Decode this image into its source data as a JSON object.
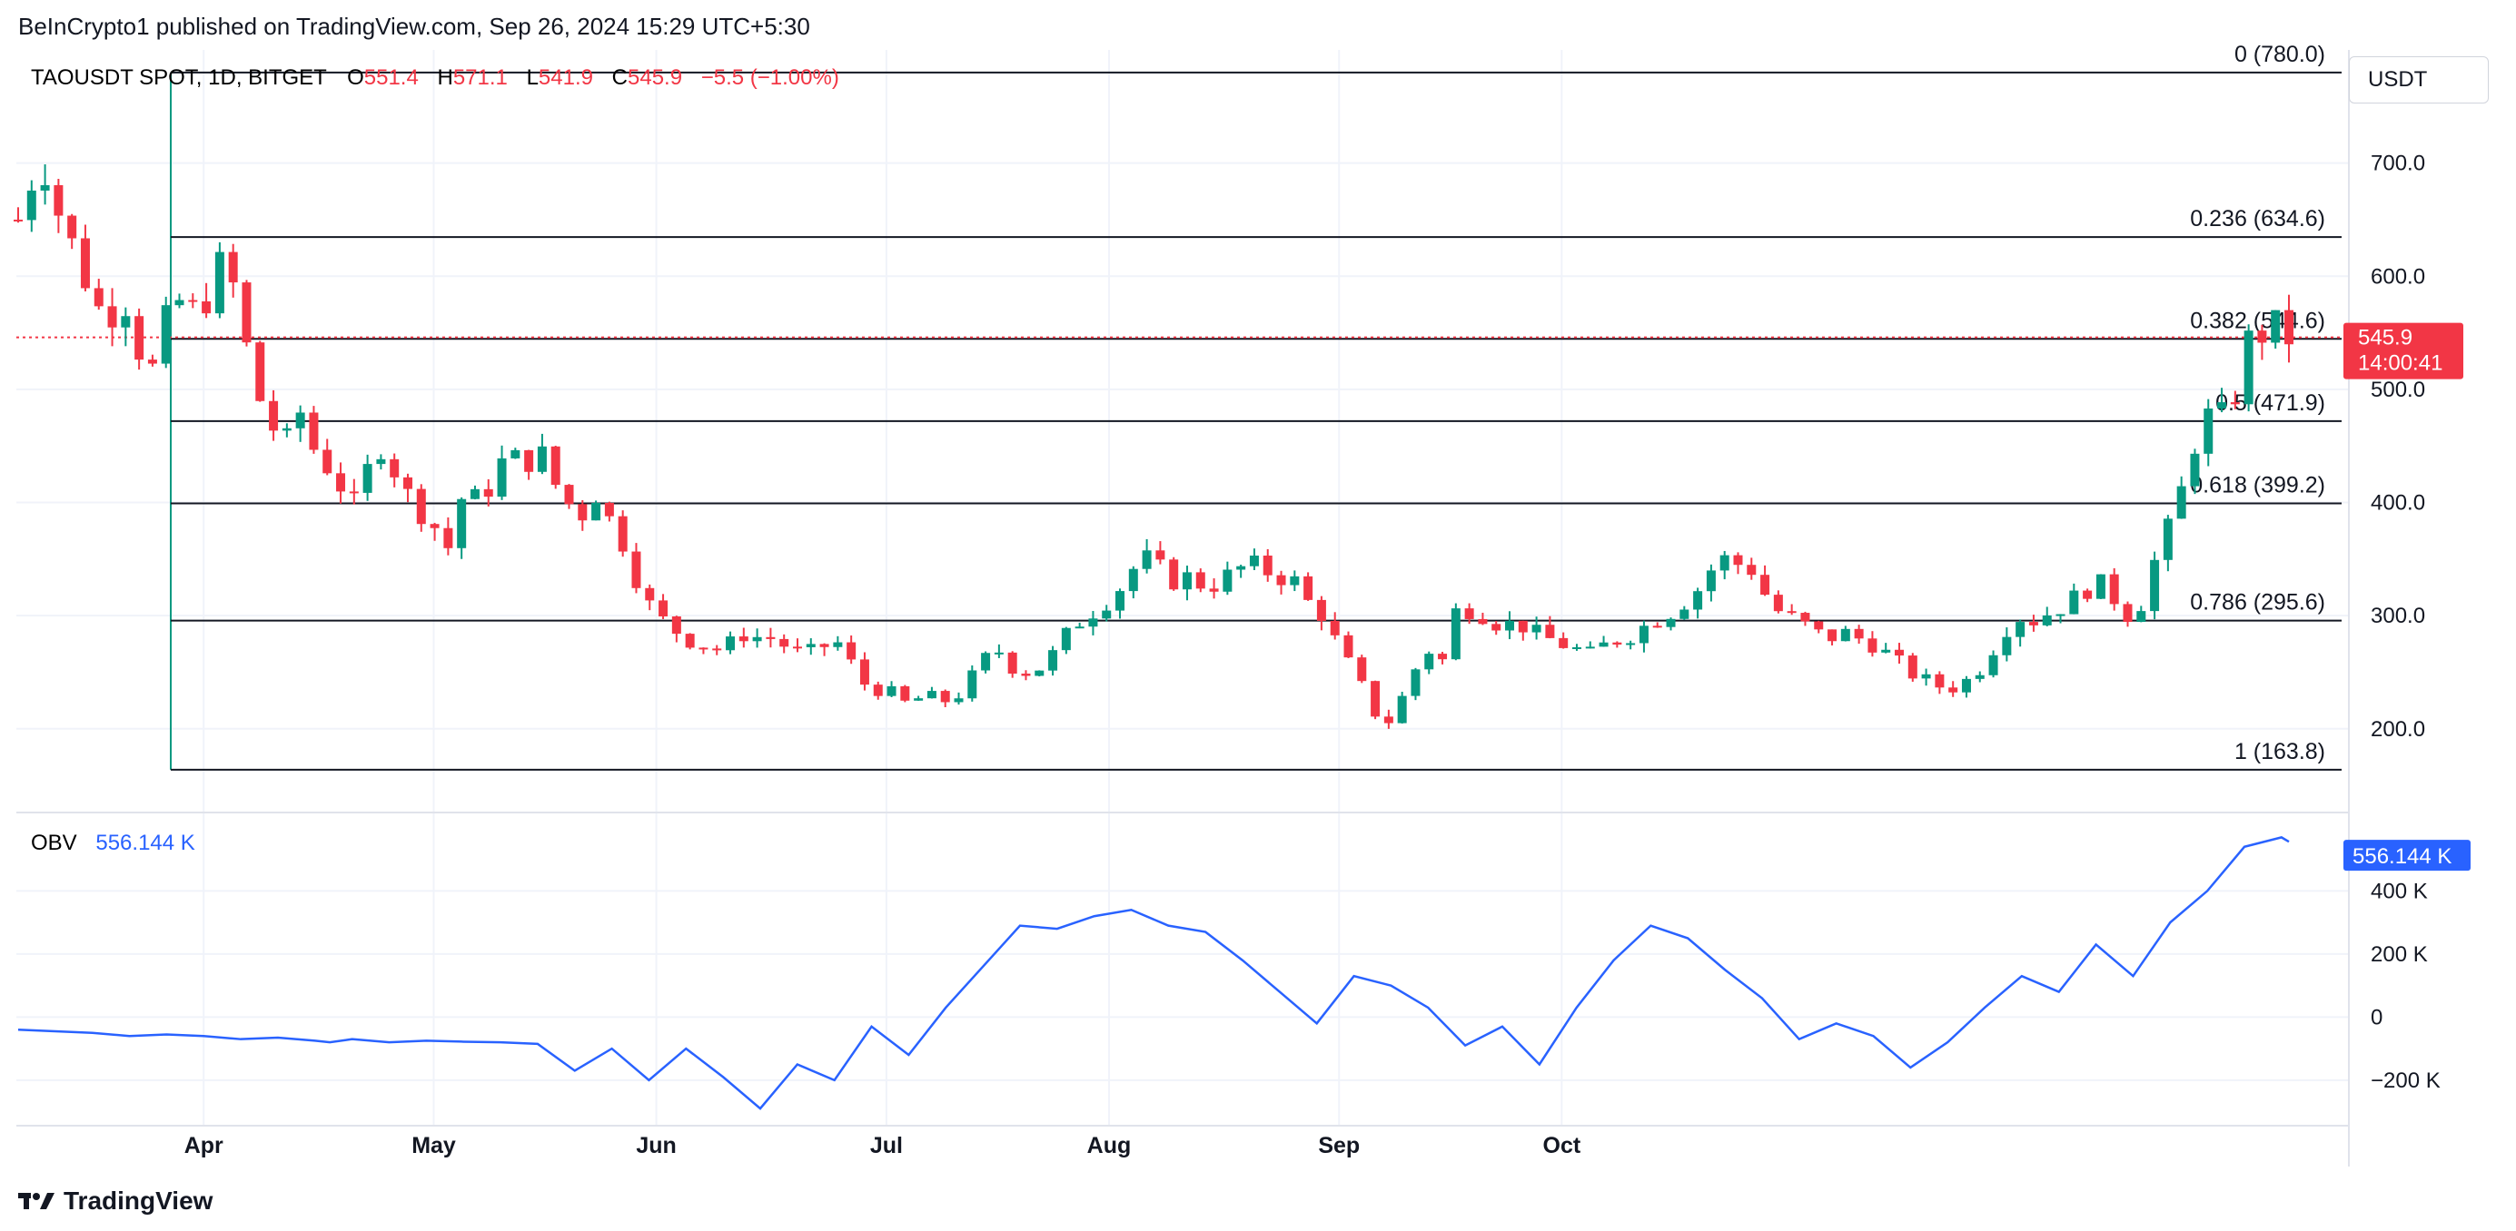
{
  "publisher": "BeInCrypto1 published on TradingView.com, Sep 26, 2024 15:29 UTC+5:30",
  "currency_button": "USDT",
  "brand": "TradingView",
  "colors": {
    "up": "#089981",
    "down": "#f23645",
    "obv": "#2962ff",
    "grid": "#f0f3fa",
    "fib": "#131722"
  },
  "chart_data": [
    {
      "type": "candlestick",
      "header": {
        "symbol": "TAOUSDT SPOT, 1D, BITGET",
        "o_label": "O",
        "o": "551.4",
        "h_label": "H",
        "h": "571.1",
        "l_label": "L",
        "l": "541.9",
        "c_label": "C",
        "c": "545.9",
        "change": "−5.5 (−1.00%)"
      },
      "price_axis": {
        "ticks": [
          "200.0",
          "300.0",
          "400.0",
          "500.0",
          "600.0",
          "700.0"
        ],
        "tick_values": [
          200,
          300,
          400,
          500,
          600,
          700
        ],
        "ylim": [
          130,
          800
        ]
      },
      "last_price": {
        "value": 545.9,
        "label": "545.9",
        "countdown": "14:00:41"
      },
      "time_axis": {
        "labels": [
          "Apr",
          "May",
          "Jun",
          "Jul",
          "Aug",
          "Sep",
          "Oct"
        ]
      },
      "fib_levels": [
        {
          "label": "0 (780.0)",
          "value": 780.0
        },
        {
          "label": "0.236 (634.6)",
          "value": 634.6
        },
        {
          "label": "0.382 (544.6)",
          "value": 544.6
        },
        {
          "label": "0.5 (471.9)",
          "value": 471.9
        },
        {
          "label": "0.618 (399.2)",
          "value": 399.2
        },
        {
          "label": "0.786 (295.6)",
          "value": 295.6
        },
        {
          "label": "1 (163.8)",
          "value": 163.8
        }
      ],
      "close_path": [
        [
          0,
          650
        ],
        [
          2,
          690
        ],
        [
          4,
          700
        ],
        [
          6,
          640
        ],
        [
          8,
          620
        ],
        [
          10,
          580
        ],
        [
          12,
          560
        ],
        [
          14,
          590
        ],
        [
          16,
          540
        ],
        [
          18,
          515
        ],
        [
          20,
          560
        ],
        [
          22,
          580
        ],
        [
          24,
          565
        ],
        [
          26,
          590
        ],
        [
          28,
          620
        ],
        [
          30,
          560
        ],
        [
          32,
          500
        ],
        [
          34,
          470
        ],
        [
          36,
          450
        ],
        [
          38,
          480
        ],
        [
          40,
          445
        ],
        [
          42,
          430
        ],
        [
          44,
          410
        ],
        [
          46,
          390
        ],
        [
          48,
          460
        ],
        [
          50,
          440
        ],
        [
          52,
          410
        ],
        [
          54,
          395
        ],
        [
          56,
          380
        ],
        [
          58,
          360
        ],
        [
          60,
          410
        ],
        [
          62,
          400
        ],
        [
          64,
          420
        ],
        [
          66,
          445
        ],
        [
          68,
          430
        ],
        [
          70,
          450
        ],
        [
          72,
          420
        ],
        [
          74,
          400
        ],
        [
          76,
          390
        ],
        [
          78,
          410
        ],
        [
          80,
          380
        ],
        [
          82,
          360
        ],
        [
          84,
          320
        ],
        [
          86,
          300
        ],
        [
          88,
          290
        ],
        [
          90,
          280
        ],
        [
          92,
          275
        ],
        [
          94,
          270
        ],
        [
          96,
          275
        ],
        [
          98,
          285
        ],
        [
          100,
          280
        ],
        [
          102,
          280
        ],
        [
          104,
          270
        ],
        [
          106,
          265
        ],
        [
          108,
          270
        ],
        [
          110,
          280
        ],
        [
          112,
          260
        ],
        [
          114,
          240
        ],
        [
          116,
          235
        ],
        [
          118,
          230
        ],
        [
          120,
          220
        ],
        [
          122,
          230
        ],
        [
          124,
          225
        ],
        [
          126,
          225
        ],
        [
          128,
          240
        ],
        [
          130,
          260
        ],
        [
          132,
          270
        ],
        [
          134,
          255
        ],
        [
          136,
          250
        ],
        [
          138,
          255
        ],
        [
          140,
          270
        ],
        [
          142,
          290
        ],
        [
          144,
          300
        ],
        [
          146,
          310
        ],
        [
          148,
          320
        ],
        [
          150,
          340
        ],
        [
          152,
          350
        ],
        [
          154,
          340
        ],
        [
          156,
          330
        ],
        [
          158,
          335
        ],
        [
          160,
          325
        ],
        [
          162,
          330
        ],
        [
          164,
          340
        ],
        [
          166,
          345
        ],
        [
          168,
          340
        ],
        [
          170,
          335
        ],
        [
          172,
          330
        ],
        [
          174,
          310
        ],
        [
          176,
          300
        ],
        [
          178,
          270
        ],
        [
          180,
          250
        ],
        [
          182,
          225
        ],
        [
          184,
          200
        ],
        [
          186,
          220
        ],
        [
          188,
          250
        ],
        [
          190,
          270
        ],
        [
          192,
          260
        ],
        [
          194,
          310
        ],
        [
          196,
          305
        ],
        [
          198,
          300
        ],
        [
          200,
          290
        ],
        [
          202,
          295
        ],
        [
          204,
          285
        ],
        [
          206,
          280
        ],
        [
          208,
          275
        ],
        [
          210,
          270
        ],
        [
          212,
          265
        ],
        [
          214,
          275
        ],
        [
          216,
          280
        ],
        [
          218,
          285
        ],
        [
          220,
          295
        ],
        [
          222,
          300
        ],
        [
          224,
          310
        ],
        [
          226,
          320
        ],
        [
          228,
          340
        ],
        [
          230,
          350
        ],
        [
          232,
          345
        ],
        [
          234,
          340
        ],
        [
          236,
          310
        ],
        [
          238,
          300
        ],
        [
          240,
          295
        ],
        [
          242,
          285
        ],
        [
          244,
          280
        ],
        [
          246,
          285
        ],
        [
          248,
          280
        ],
        [
          250,
          275
        ],
        [
          252,
          265
        ],
        [
          254,
          255
        ],
        [
          256,
          245
        ],
        [
          258,
          240
        ],
        [
          260,
          235
        ],
        [
          262,
          240
        ],
        [
          264,
          250
        ],
        [
          266,
          270
        ],
        [
          268,
          290
        ],
        [
          270,
          300
        ],
        [
          272,
          295
        ],
        [
          274,
          305
        ],
        [
          276,
          310
        ],
        [
          278,
          320
        ],
        [
          280,
          330
        ],
        [
          282,
          320
        ],
        [
          284,
          300
        ],
        [
          286,
          310
        ],
        [
          288,
          350
        ],
        [
          290,
          380
        ],
        [
          292,
          420
        ],
        [
          294,
          470
        ],
        [
          296,
          480
        ],
        [
          298,
          470
        ],
        [
          300,
          540
        ],
        [
          302,
          548
        ],
        [
          304,
          556
        ],
        [
          306,
          545.9
        ]
      ],
      "candle_count": 170
    },
    {
      "type": "line",
      "name": "OBV",
      "value_label": "556.144 K",
      "axis": {
        "ticks": [
          "−200 K",
          "0",
          "200 K",
          "400 K"
        ],
        "tick_values": [
          -200000,
          0,
          200000,
          400000
        ],
        "ylim": [
          -330000,
          620000
        ]
      },
      "x": [
        0,
        5,
        10,
        15,
        20,
        25,
        30,
        35,
        40,
        42,
        45,
        50,
        55,
        60,
        65,
        70,
        75,
        80,
        85,
        90,
        95,
        100,
        105,
        110,
        115,
        120,
        125,
        130,
        135,
        140,
        145,
        150,
        155,
        160,
        165,
        170,
        175,
        180,
        185,
        190,
        195,
        200,
        205,
        210,
        215,
        220,
        225,
        230,
        235,
        240,
        245,
        250,
        255,
        260,
        265,
        270,
        275,
        280,
        285,
        290,
        295,
        300,
        305,
        306
      ],
      "values": [
        -40000,
        -45000,
        -50000,
        -60000,
        -55000,
        -60000,
        -70000,
        -65000,
        -75000,
        -80000,
        -70000,
        -80000,
        -75000,
        -78000,
        -80000,
        -85000,
        -170000,
        -100000,
        -200000,
        -100000,
        -190000,
        -290000,
        -150000,
        -200000,
        -30000,
        -120000,
        30000,
        160000,
        290000,
        280000,
        320000,
        340000,
        290000,
        270000,
        180000,
        80000,
        -20000,
        130000,
        100000,
        30000,
        -90000,
        -30000,
        -150000,
        30000,
        180000,
        290000,
        250000,
        150000,
        60000,
        -70000,
        -20000,
        -60000,
        -160000,
        -80000,
        30000,
        130000,
        80000,
        230000,
        130000,
        300000,
        400000,
        540000,
        570000,
        556144
      ]
    }
  ]
}
